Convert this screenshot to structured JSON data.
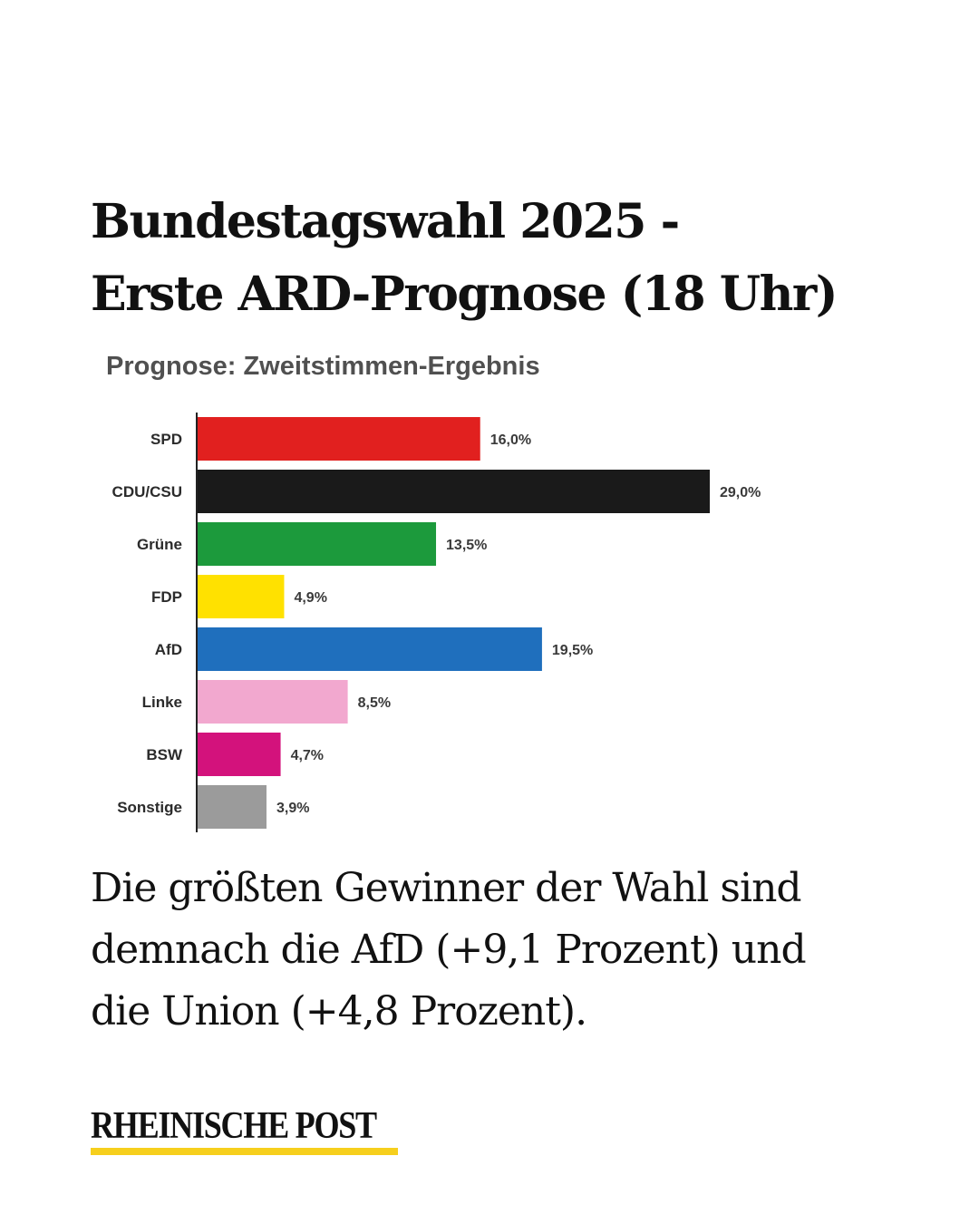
{
  "headline": {
    "line1": "Bundestagswahl 2025 -",
    "line2": "Erste ARD-Prognose (18 Uhr)"
  },
  "chart_data": {
    "type": "bar",
    "orientation": "horizontal",
    "title": "Prognose: Zweitstimmen-Ergebnis",
    "categories": [
      "SPD",
      "CDU/CSU",
      "Grüne",
      "FDP",
      "AfD",
      "Linke",
      "BSW",
      "Sonstige"
    ],
    "values": [
      16.0,
      29.0,
      13.5,
      4.9,
      19.5,
      8.5,
      4.7,
      3.9
    ],
    "value_labels": [
      "16,0%",
      "29,0%",
      "13,5%",
      "4,9%",
      "19,5%",
      "8,5%",
      "4,7%",
      "3,9%"
    ],
    "colors": [
      "#e1201f",
      "#1a1a1a",
      "#1c9a3c",
      "#ffe100",
      "#1f6fbd",
      "#f2a8cf",
      "#d3127c",
      "#9b9b9b"
    ],
    "xlim": [
      0,
      29.0
    ],
    "grid": false
  },
  "body": {
    "line1": "Die größten Gewinner der Wahl sind",
    "line2": "demnach die AfD (+9,1 Prozent) und",
    "line3": "die Union (+4,8 Prozent)."
  },
  "brand": {
    "name": "RHEINISCHE POST",
    "underline_color": "#f6cf1d"
  }
}
